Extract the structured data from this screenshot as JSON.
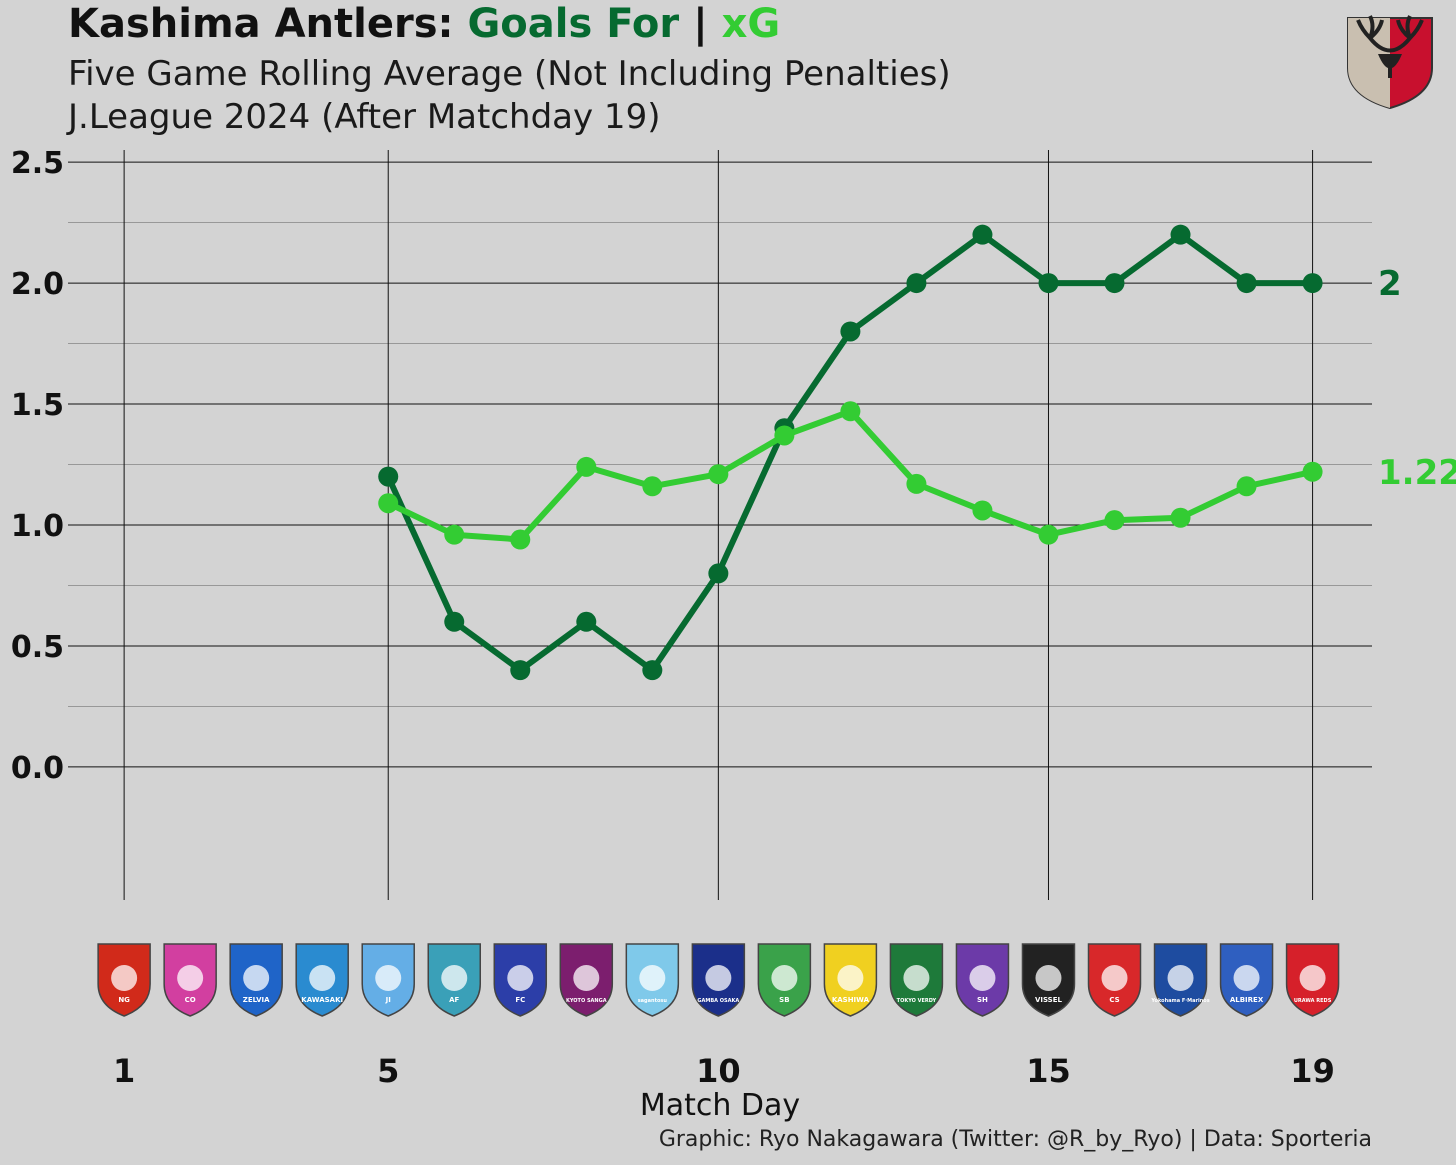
{
  "title": {
    "team": "Kashima Antlers:",
    "goals_for": "Goals For",
    "separator": "|",
    "xg": "xG"
  },
  "subtitle1": "Five Game Rolling Average (Not Including Penalties)",
  "subtitle2": "J.League 2024 (After Matchday 19)",
  "credit": "Graphic: Ryo Nakagawara (Twitter: @R_by_Ryo) | Data: Sporteria",
  "colors": {
    "background": "#d3d3d3",
    "goals": "#066a30",
    "xg": "#33cc33",
    "grid": "#111111"
  },
  "chart_data": {
    "type": "line",
    "title": "Kashima Antlers: Goals For | xG",
    "xlabel": "Match Day",
    "ylabel": "",
    "xlim": [
      0.15,
      19.9
    ],
    "ylim": [
      -0.55,
      2.55
    ],
    "x_ticks": [
      1,
      5,
      10,
      15,
      19
    ],
    "y_ticks": [
      "0.0",
      "0.5",
      "1.0",
      "1.5",
      "2.0",
      "2.5"
    ],
    "y_tick_values": [
      0,
      0.5,
      1.0,
      1.5,
      2.0,
      2.5
    ],
    "grid": true,
    "legend": "none (series colors explained in title)",
    "series": [
      {
        "name": "Goals For",
        "color": "#066a30",
        "x": [
          5,
          6,
          7,
          8,
          9,
          10,
          11,
          12,
          13,
          14,
          15,
          16,
          17,
          18,
          19
        ],
        "values": [
          1.2,
          0.6,
          0.4,
          0.6,
          0.4,
          0.8,
          1.4,
          1.8,
          2.0,
          2.2,
          2.0,
          2.0,
          2.2,
          2.0,
          2.0
        ],
        "end_label": "2"
      },
      {
        "name": "xG",
        "color": "#33cc33",
        "x": [
          5,
          6,
          7,
          8,
          9,
          10,
          11,
          12,
          13,
          14,
          15,
          16,
          17,
          18,
          19
        ],
        "values": [
          1.09,
          0.96,
          0.94,
          1.24,
          1.16,
          1.21,
          1.37,
          1.47,
          1.17,
          1.06,
          0.96,
          1.02,
          1.03,
          1.16,
          1.22
        ],
        "end_label": "1.22"
      }
    ],
    "opponents": [
      {
        "name": "Nagoya Grampus",
        "color": "#d12a1a",
        "text": "NG"
      },
      {
        "name": "Cerezo Osaka",
        "color": "#d23fa0",
        "text": "CO"
      },
      {
        "name": "Machida Zelvia",
        "color": "#1f64c8",
        "text": "ZELVIA"
      },
      {
        "name": "Kawasaki Frontale",
        "color": "#2a8bd0",
        "text": "KAWASAKI"
      },
      {
        "name": "Jubilo Iwata",
        "color": "#64aee6",
        "text": "JI"
      },
      {
        "name": "Avispa Fukuoka",
        "color": "#3aa0b8",
        "text": "AF"
      },
      {
        "name": "FC Tokyo",
        "color": "#2c3ea8",
        "text": "FC"
      },
      {
        "name": "Kyoto Sanga",
        "color": "#7c1e6e",
        "text": "KYOTO SANGA"
      },
      {
        "name": "Sagan Tosu",
        "color": "#7fc9ea",
        "text": "sagantosu"
      },
      {
        "name": "Gamba Osaka",
        "color": "#1b2f8a",
        "text": "GAMBA OSAKA"
      },
      {
        "name": "Shonan Bellmare",
        "color": "#3aa24a",
        "text": "SB"
      },
      {
        "name": "Kashiwa Reysol",
        "color": "#f0d020",
        "text": "KASHIWA"
      },
      {
        "name": "Tokyo Verdy",
        "color": "#1e7a3a",
        "text": "TOKYO VERDY"
      },
      {
        "name": "Sanfrecce Hiroshima",
        "color": "#6c3aa8",
        "text": "SH"
      },
      {
        "name": "Vissel Kobe",
        "color": "#222222",
        "text": "VISSEL"
      },
      {
        "name": "Consadole Sapporo",
        "color": "#d8282a",
        "text": "CS"
      },
      {
        "name": "Yokohama F. Marinos",
        "color": "#1e4ca0",
        "text": "Yokohama F·Marinos"
      },
      {
        "name": "Albirex Niigata",
        "color": "#2f5fc0",
        "text": "ALBIREX"
      },
      {
        "name": "Urawa Reds",
        "color": "#d6202a",
        "text": "URAWA REDS"
      }
    ]
  }
}
